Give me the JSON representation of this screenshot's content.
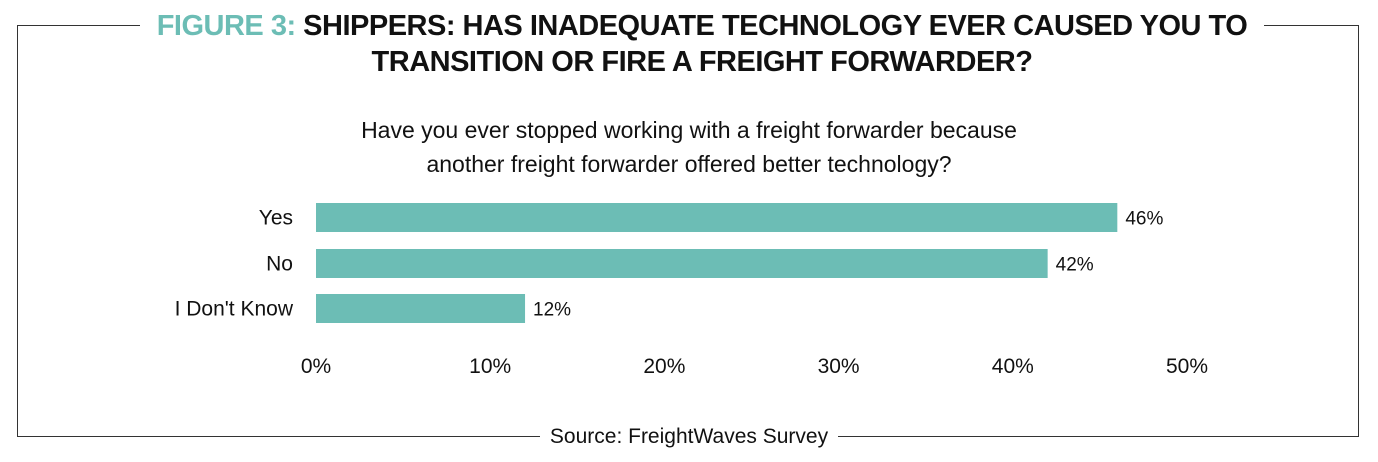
{
  "chart_data": {
    "type": "bar",
    "orientation": "horizontal",
    "title_prefix": "FIGURE 3:",
    "title": "SHIPPERS: HAS INADEQUATE TECHNOLOGY EVER CAUSED YOU TO TRANSITION OR FIRE A FREIGHT FORWARDER?",
    "subtitle_lines": [
      "Have you ever stopped working with a freight forwarder because",
      "another freight forwarder offered better technology?"
    ],
    "categories": [
      "Yes",
      "No",
      "I Don't Know"
    ],
    "values": [
      46,
      42,
      12
    ],
    "value_labels": [
      "46%",
      "42%",
      "12%"
    ],
    "xlim": [
      0,
      50
    ],
    "x_ticks": [
      "0%",
      "10%",
      "20%",
      "30%",
      "40%",
      "50%"
    ],
    "grid": false,
    "source": "Source: FreightWaves Survey",
    "colors": {
      "bar": "#6cbdb5",
      "title_accent": "#6cbdb5"
    }
  }
}
